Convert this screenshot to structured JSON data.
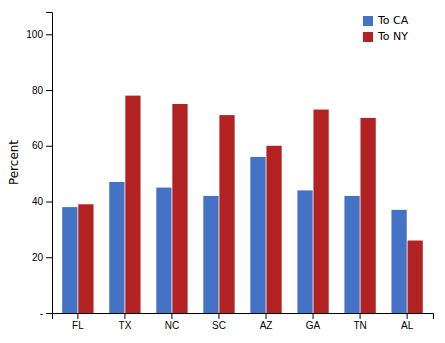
{
  "chart_data": {
    "type": "bar",
    "categories": [
      "FL",
      "TX",
      "NC",
      "SC",
      "AZ",
      "GA",
      "TN",
      "AL"
    ],
    "series": [
      {
        "name": "To CA",
        "color": "#4472C4",
        "values": [
          38,
          47,
          45,
          42,
          56,
          44,
          42,
          37
        ]
      },
      {
        "name": "To NY",
        "color": "#B22222",
        "values": [
          39,
          78,
          75,
          71,
          60,
          73,
          70,
          26
        ]
      }
    ],
    "ylabel": "Percent",
    "ylim": [
      0,
      108
    ],
    "yticks": [
      {
        "value": 0,
        "label": "-"
      },
      20,
      40,
      60,
      80,
      100
    ],
    "grid": false,
    "legend": "upper right"
  }
}
